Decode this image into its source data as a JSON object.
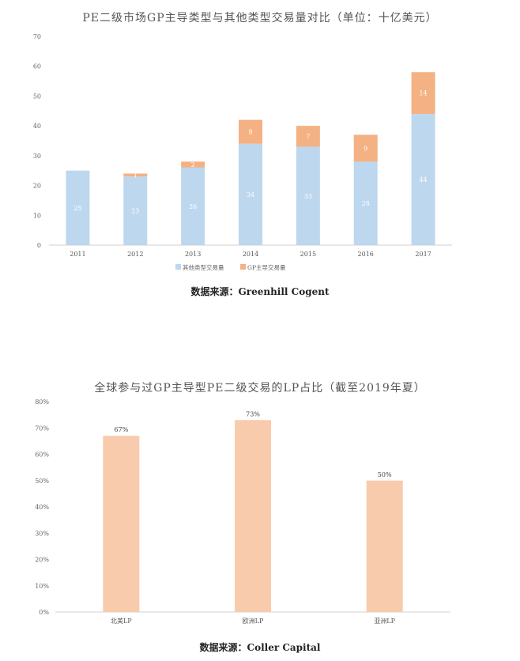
{
  "charts": [
    {
      "source": "数据来源：Greenhill Cogent"
    },
    {
      "source": "数据来源：Coller Capital"
    }
  ],
  "chart_data": [
    {
      "type": "bar",
      "stacked": true,
      "title": "PE二级市场GP主导类型与其他类型交易量对比（单位：十亿美元）",
      "categories": [
        "2011",
        "2012",
        "2013",
        "2014",
        "2015",
        "2016",
        "2017"
      ],
      "series": [
        {
          "name": "其他类型交易量",
          "color": "#bdd7ee",
          "values": [
            25,
            23,
            26,
            34,
            33,
            28,
            44
          ]
        },
        {
          "name": "GP主导交易量",
          "color": "#f4b183",
          "values": [
            0,
            1,
            2,
            8,
            7,
            9,
            14
          ]
        }
      ],
      "ylim": [
        0,
        70
      ],
      "yticks": [
        0,
        10,
        20,
        30,
        40,
        50,
        60,
        70
      ],
      "legend": "bottom"
    },
    {
      "type": "bar",
      "title": "全球参与过GP主导型PE二级交易的LP占比（截至2019年夏）",
      "categories": [
        "北美LP",
        "欧洲LP",
        "亚洲LP"
      ],
      "values": [
        67,
        73,
        50
      ],
      "data_labels": [
        "67%",
        "73%",
        "50%"
      ],
      "color": "#f8cbad",
      "ylim": [
        0,
        80
      ],
      "yticks": [
        "0%",
        "10%",
        "20%",
        "30%",
        "40%",
        "50%",
        "60%",
        "70%",
        "80%"
      ]
    }
  ]
}
